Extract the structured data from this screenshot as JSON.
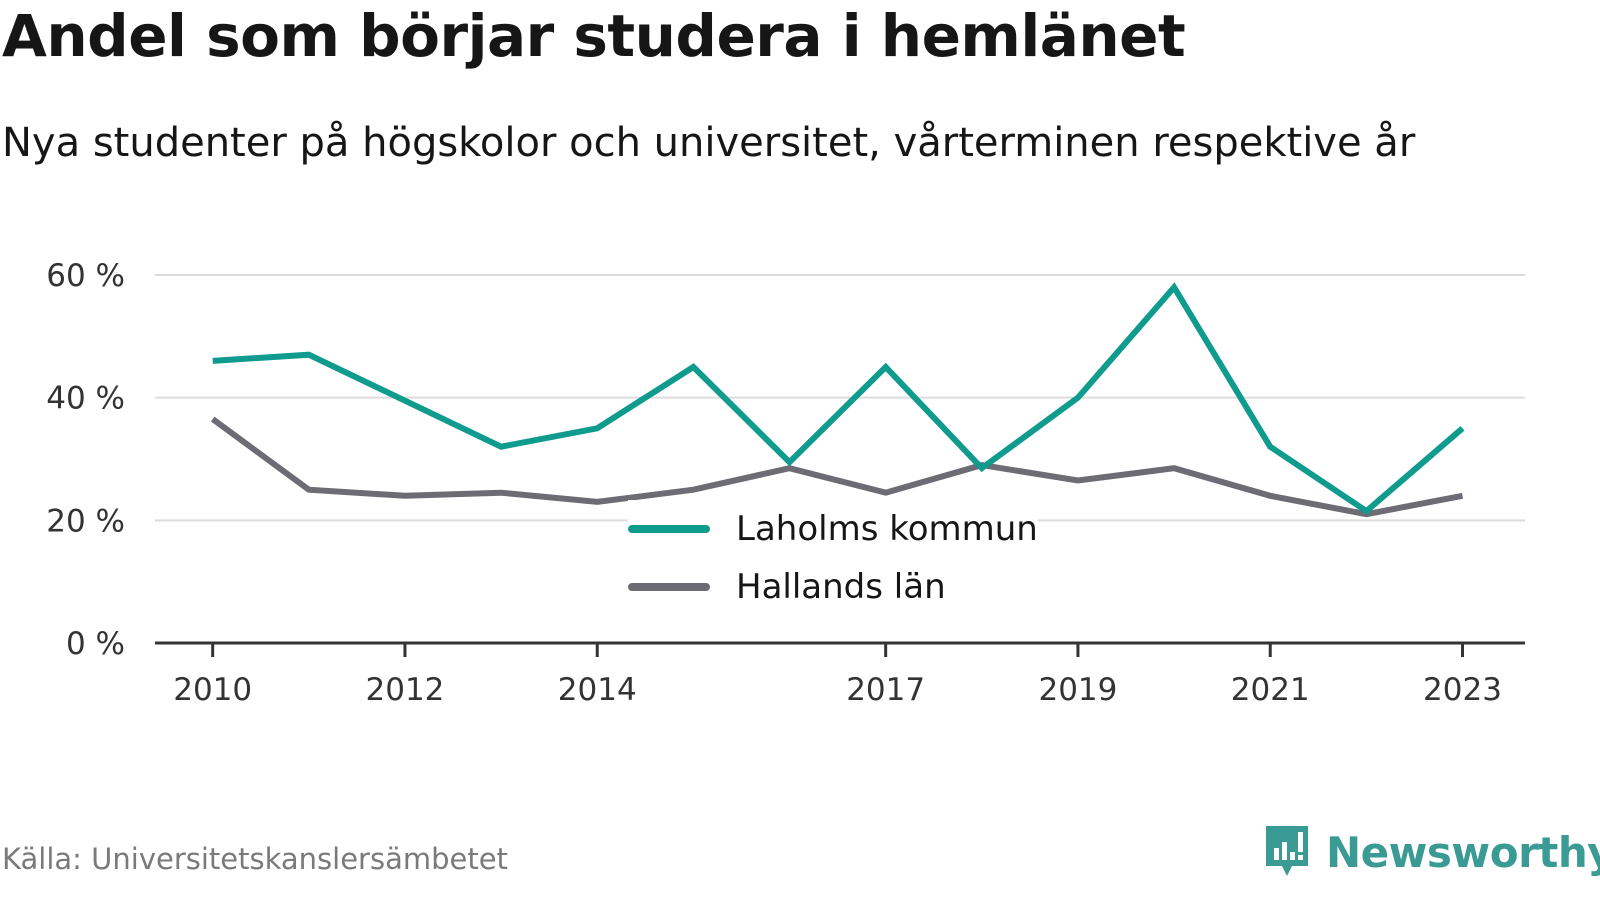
{
  "title": "Andel som börjar studera i hemlänet",
  "subtitle": "Nya studenter på högskolor och universitet, vårterminen respektive år",
  "source": "Källa: Universitetskanslersämbetet",
  "brand": {
    "name": "Newsworthy",
    "icon": "newsworthy-chart-bubble-icon",
    "color": "#3a9a94"
  },
  "chart_data": {
    "type": "line",
    "x": [
      2010,
      2011,
      2012,
      2013,
      2014,
      2015,
      2016,
      2017,
      2018,
      2019,
      2020,
      2021,
      2022,
      2023
    ],
    "x_tick_labels": [
      "2010",
      "2012",
      "2014",
      "2017",
      "2019",
      "2021",
      "2023"
    ],
    "x_tick_values": [
      2010,
      2012,
      2014,
      2017,
      2019,
      2021,
      2023
    ],
    "y_tick_labels": [
      "0 %",
      "20 %",
      "40 %",
      "60 %"
    ],
    "y_tick_values": [
      0,
      20,
      40,
      60
    ],
    "ylim": [
      0,
      60
    ],
    "grid": true,
    "legend_position": "center-bottom",
    "series": [
      {
        "name": "Laholms kommun",
        "color": "#0f9b8e",
        "values": [
          46,
          47,
          39.5,
          32,
          35,
          45,
          29.5,
          45,
          28.5,
          40,
          58,
          32,
          21.5,
          35
        ]
      },
      {
        "name": "Hallands län",
        "color": "#6d6b74",
        "values": [
          36.5,
          25,
          24,
          24.5,
          23,
          25,
          28.5,
          24.5,
          29,
          26.5,
          28.5,
          24,
          21,
          24
        ]
      }
    ]
  }
}
